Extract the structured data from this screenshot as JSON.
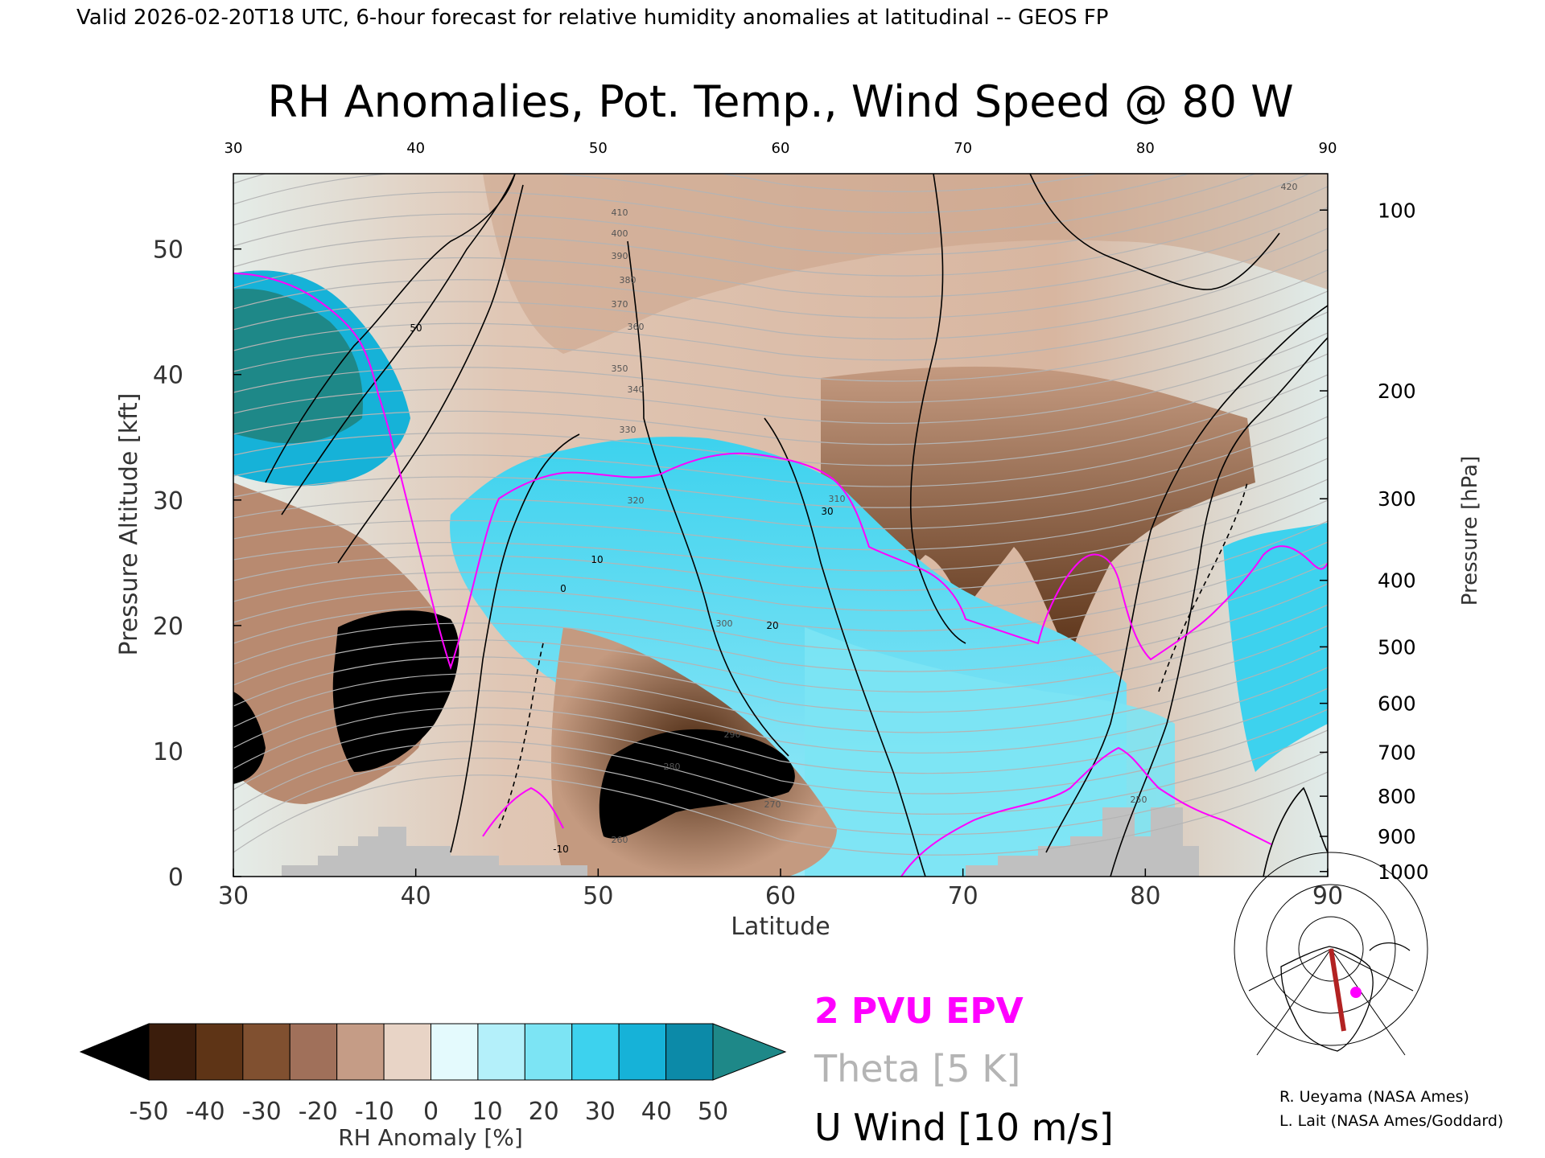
{
  "header": {
    "valid_line": "Valid 2026-02-20T18 UTC, 6-hour forecast for relative humidity anomalies at latitudinal -- GEOS FP"
  },
  "chart_data": {
    "type": "heatmap",
    "title": "RH Anomalies, Pot. Temp., Wind Speed @ 80 W",
    "xlabel": "Latitude",
    "ylabel_left": "Pressure Altitude [kft]",
    "ylabel_right": "Pressure [hPa]",
    "xlim": [
      30,
      90
    ],
    "ylim": [
      0,
      56
    ],
    "x_ticks": [
      "30",
      "40",
      "50",
      "60",
      "70",
      "80",
      "90"
    ],
    "y_ticks_left": [
      "0",
      "10",
      "20",
      "30",
      "40",
      "50"
    ],
    "pressure_ticks": [
      {
        "hpa": "100",
        "kft": 53.1
      },
      {
        "hpa": "200",
        "kft": 38.7
      },
      {
        "hpa": "300",
        "kft": 30.1
      },
      {
        "hpa": "400",
        "kft": 23.6
      },
      {
        "hpa": "500",
        "kft": 18.3
      },
      {
        "hpa": "600",
        "kft": 13.8
      },
      {
        "hpa": "700",
        "kft": 9.9
      },
      {
        "hpa": "800",
        "kft": 6.4
      },
      {
        "hpa": "900",
        "kft": 3.2
      },
      {
        "hpa": "1000",
        "kft": 0.4
      }
    ],
    "colorbar": {
      "label": "RH Anomaly [%]",
      "ticks": [
        "-50",
        "-40",
        "-30",
        "-20",
        "-10",
        "0",
        "10",
        "20",
        "30",
        "40",
        "50"
      ],
      "colors": [
        "#000000",
        "#3b1d0c",
        "#5e3416",
        "#805030",
        "#a0705a",
        "#c59c86",
        "#e8d4c6",
        "#e4fafd",
        "#b4f0fa",
        "#7ce4f4",
        "#3dd2ee",
        "#16b2d8",
        "#0c8aa8",
        "#1e8888"
      ]
    },
    "theta_contour_labels": [
      "250",
      "260",
      "270",
      "280",
      "290",
      "300",
      "310",
      "320",
      "330",
      "340",
      "350",
      "360",
      "370",
      "380",
      "390",
      "400",
      "410",
      "420"
    ],
    "wind_contour_labels": [
      "-10",
      "0",
      "10",
      "20",
      "30",
      "50"
    ],
    "legend": [
      {
        "label": "2 PVU EPV",
        "color": "#ff00ff"
      },
      {
        "label": "Theta [5 K]",
        "color": "#b4b4b4"
      },
      {
        "label": "U Wind [10 m/s]",
        "color": "#000000"
      }
    ]
  },
  "credits": {
    "line1": "R. Ueyama (NASA Ames)",
    "line2": "L. Lait (NASA Ames/Goddard)"
  },
  "colors": {
    "pvu": "#ff00ff",
    "theta": "#b4b4b4",
    "terrain": "#c0c0c0",
    "track": "#b22222"
  }
}
